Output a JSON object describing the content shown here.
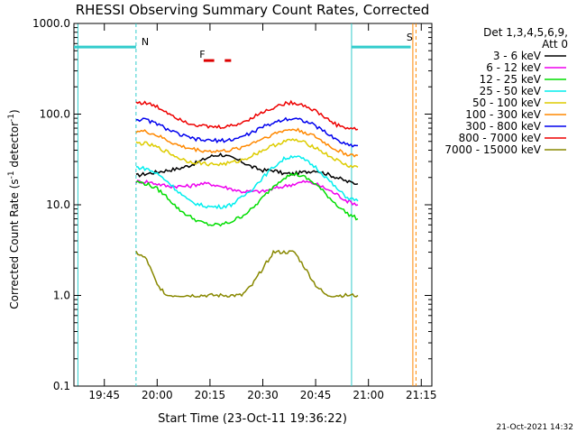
{
  "chart_data": {
    "type": "line",
    "title": "RHESSI Observing Summary Count Rates, Corrected",
    "xlabel": "Start Time (23-Oct-11 19:36:22)",
    "ylabel_main": "Corrected Count Rate (s",
    "ylabel_sup1": "-1",
    "ylabel_mid": " detector",
    "ylabel_sup2": "-1",
    "ylabel_end": ")",
    "x_range_min": [
      19.6061,
      21.3
    ],
    "y_range": [
      0.1,
      1000
    ],
    "y_scale": "log",
    "x_ticks": [
      "19:45",
      "20:00",
      "20:15",
      "20:30",
      "20:45",
      "21:00",
      "21:15"
    ],
    "x_tick_values_min": [
      19.75,
      20.0,
      20.25,
      20.5,
      20.75,
      21.0,
      21.25
    ],
    "y_ticks": [
      "0.1",
      "1.0",
      "10.0",
      "100.0",
      "1000.0"
    ],
    "y_tick_values": [
      0.1,
      1,
      10,
      100,
      1000
    ],
    "legend_header": [
      "Det 1,3,4,5,6,9,",
      "Att 0"
    ],
    "legend_position": "right",
    "footer_date": "21-Oct-2021 14:32",
    "markers": [
      {
        "label": "N",
        "color": "#33cccc"
      },
      {
        "label": "F",
        "color": "#dd0000"
      },
      {
        "label": "S",
        "color": "#ff8800"
      }
    ],
    "series": [
      {
        "name": "3 - 6 keV",
        "color": "#000000",
        "x": [
          19.9,
          19.95,
          20.0,
          20.05,
          20.1,
          20.15,
          20.2,
          20.25,
          20.3,
          20.35,
          20.4,
          20.45,
          20.5,
          20.55,
          20.6,
          20.65,
          20.7,
          20.75,
          20.8,
          20.85,
          20.9,
          20.95
        ],
        "y": [
          21,
          22,
          23,
          24,
          25,
          27,
          30,
          34,
          36,
          33,
          30,
          26,
          24,
          24,
          22,
          22,
          23,
          24,
          22,
          20,
          18,
          17
        ]
      },
      {
        "name": "6 - 12 keV",
        "color": "#ee00ee",
        "x": [
          19.9,
          19.95,
          20.0,
          20.05,
          20.1,
          20.15,
          20.2,
          20.25,
          20.3,
          20.35,
          20.4,
          20.45,
          20.5,
          20.55,
          20.6,
          20.65,
          20.7,
          20.75,
          20.8,
          20.85,
          20.9,
          20.95
        ],
        "y": [
          18,
          18,
          17,
          16,
          16,
          16,
          17,
          17,
          16,
          15,
          14,
          14,
          14,
          15,
          16,
          17,
          18,
          17,
          15,
          13,
          11,
          10
        ]
      },
      {
        "name": "12 - 25 keV",
        "color": "#00dd00",
        "x": [
          19.9,
          19.95,
          20.0,
          20.05,
          20.1,
          20.15,
          20.2,
          20.25,
          20.3,
          20.35,
          20.4,
          20.45,
          20.5,
          20.55,
          20.6,
          20.65,
          20.7,
          20.75,
          20.8,
          20.85,
          20.9,
          20.95
        ],
        "y": [
          18,
          17,
          15,
          12,
          9,
          7.5,
          6.5,
          6,
          6,
          6.5,
          7.5,
          9,
          12,
          16,
          20,
          22,
          20,
          17,
          13,
          10,
          8,
          7
        ]
      },
      {
        "name": "25 - 50 keV",
        "color": "#00eeee",
        "x": [
          19.9,
          19.95,
          20.0,
          20.05,
          20.1,
          20.15,
          20.2,
          20.25,
          20.3,
          20.35,
          20.4,
          20.45,
          20.5,
          20.55,
          20.6,
          20.65,
          20.7,
          20.75,
          20.8,
          20.85,
          20.9,
          20.95
        ],
        "y": [
          26,
          25,
          22,
          18,
          14,
          11,
          10,
          9.5,
          9.5,
          10,
          12,
          15,
          20,
          26,
          32,
          35,
          31,
          26,
          20,
          15,
          12,
          11
        ]
      },
      {
        "name": "50 - 100 keV",
        "color": "#ddcc00",
        "x": [
          19.9,
          19.95,
          20.0,
          20.05,
          20.1,
          20.15,
          20.2,
          20.25,
          20.3,
          20.35,
          20.4,
          20.45,
          20.5,
          20.55,
          20.6,
          20.65,
          20.7,
          20.75,
          20.8,
          20.85,
          20.9,
          20.95
        ],
        "y": [
          48,
          47,
          43,
          38,
          33,
          30,
          29,
          28,
          28,
          29,
          31,
          35,
          40,
          45,
          50,
          52,
          48,
          43,
          36,
          31,
          27,
          26
        ]
      },
      {
        "name": "100 - 300 keV",
        "color": "#ff8800",
        "x": [
          19.9,
          19.95,
          20.0,
          20.05,
          20.1,
          20.15,
          20.2,
          20.25,
          20.3,
          20.35,
          20.4,
          20.45,
          20.5,
          20.55,
          20.6,
          20.65,
          20.7,
          20.75,
          20.8,
          20.85,
          20.9,
          20.95
        ],
        "y": [
          65,
          64,
          58,
          51,
          45,
          42,
          40,
          39,
          39,
          40,
          43,
          48,
          54,
          60,
          66,
          68,
          63,
          56,
          47,
          40,
          36,
          35
        ]
      },
      {
        "name": "300 - 800 keV",
        "color": "#0000ee",
        "x": [
          19.9,
          19.95,
          20.0,
          20.05,
          20.1,
          20.15,
          20.2,
          20.25,
          20.3,
          20.35,
          20.4,
          20.45,
          20.5,
          20.55,
          20.6,
          20.65,
          20.7,
          20.75,
          20.8,
          20.85,
          20.9,
          20.95
        ],
        "y": [
          88,
          86,
          78,
          68,
          60,
          55,
          52,
          51,
          51,
          52,
          56,
          63,
          72,
          80,
          88,
          90,
          84,
          74,
          62,
          52,
          46,
          45
        ]
      },
      {
        "name": "800 - 7000 keV",
        "color": "#ee0000",
        "x": [
          19.9,
          19.95,
          20.0,
          20.05,
          20.1,
          20.15,
          20.2,
          20.25,
          20.3,
          20.35,
          20.4,
          20.45,
          20.5,
          20.55,
          20.6,
          20.65,
          20.7,
          20.75,
          20.8,
          20.85,
          20.9,
          20.95
        ],
        "y": [
          135,
          132,
          120,
          104,
          90,
          80,
          75,
          72,
          72,
          74,
          80,
          92,
          105,
          118,
          130,
          134,
          124,
          108,
          90,
          76,
          70,
          68
        ]
      },
      {
        "name": "7000 - 15000 keV",
        "color": "#888800",
        "x": [
          19.9,
          19.95,
          20.0,
          20.05,
          20.1,
          20.15,
          20.2,
          20.25,
          20.3,
          20.35,
          20.4,
          20.45,
          20.5,
          20.55,
          20.6,
          20.65,
          20.7,
          20.75,
          20.8,
          20.85,
          20.9,
          20.95
        ],
        "y": [
          3,
          2.5,
          1.3,
          1,
          1,
          1,
          1,
          1,
          1,
          1,
          1,
          1.3,
          2,
          3,
          3,
          3,
          2,
          1.3,
          1,
          1,
          1,
          1
        ]
      }
    ]
  }
}
